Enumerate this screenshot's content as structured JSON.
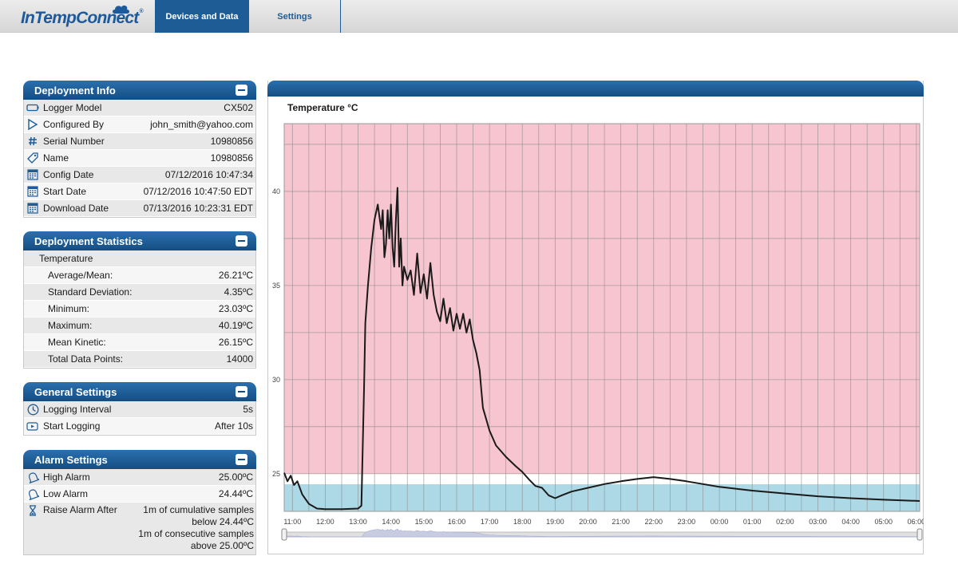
{
  "app": {
    "logo": "InTempConnect",
    "logo_mark": "®",
    "nav": [
      {
        "label": "Devices and Data"
      },
      {
        "label": "Settings"
      }
    ]
  },
  "deployment_info": {
    "title": "Deployment Info",
    "rows": [
      {
        "label": "Logger Model",
        "value": "CX502",
        "icon": "logger-icon"
      },
      {
        "label": "Configured By",
        "value": "john_smith@yahoo.com",
        "icon": "play-triangle-icon"
      },
      {
        "label": "Serial Number",
        "value": "10980856",
        "icon": "hash-icon"
      },
      {
        "label": "Name",
        "value": "10980856",
        "icon": "tag-icon"
      },
      {
        "label": "Config Date",
        "value": "07/12/2016 10:47:34",
        "icon": "calendar-icon"
      },
      {
        "label": "Start Date",
        "value": "07/12/2016 10:47:50 EDT",
        "icon": "calendar-icon"
      },
      {
        "label": "Download Date",
        "value": "07/13/2016 10:23:31 EDT",
        "icon": "calendar-icon"
      }
    ]
  },
  "deployment_statistics": {
    "title": "Deployment Statistics",
    "group_label": "Temperature",
    "rows": [
      {
        "label": "Average/Mean:",
        "value": "26.21ºC"
      },
      {
        "label": "Standard Deviation:",
        "value": "4.35ºC"
      },
      {
        "label": "Minimum:",
        "value": "23.03ºC"
      },
      {
        "label": "Maximum:",
        "value": "40.19ºC"
      },
      {
        "label": "Mean Kinetic:",
        "value": "26.15ºC"
      },
      {
        "label": "Total Data Points:",
        "value": "14000"
      }
    ]
  },
  "general_settings": {
    "title": "General Settings",
    "rows": [
      {
        "label": "Logging Interval",
        "value": "5s",
        "icon": "clock-icon"
      },
      {
        "label": "Start Logging",
        "value": "After 10s",
        "icon": "start-logging-icon"
      }
    ]
  },
  "alarm_settings": {
    "title": "Alarm Settings",
    "rows": [
      {
        "label": "High Alarm",
        "value": "25.00ºC",
        "icon": "bell-icon"
      },
      {
        "label": "Low Alarm",
        "value": "24.44ºC",
        "icon": "bell-icon"
      }
    ],
    "raise": {
      "label": "Raise Alarm After",
      "icon": "hourglass-icon",
      "lines": [
        "1m of cumulative samples",
        "below 24.44ºC",
        "1m of consecutive samples",
        "above 25.00ºC"
      ]
    }
  },
  "colors": {
    "brand": "#1e5c96",
    "high_alarm_zone": "#f7c5d0",
    "low_alarm_zone": "#add8e6",
    "line": "#1a1a1a"
  },
  "chart_data": {
    "type": "line",
    "title": "Temperature °C",
    "ylim": [
      23.0,
      43.6
    ],
    "yticks": [
      25,
      30,
      35,
      40
    ],
    "x_ticks": [
      "11:00",
      "12:00",
      "13:00",
      "14:00",
      "15:00",
      "16:00",
      "17:00",
      "18:00",
      "19:00",
      "20:00",
      "21:00",
      "22:00",
      "23:00",
      "00:00",
      "01:00",
      "02:00",
      "03:00",
      "04:00",
      "05:00",
      "06:00"
    ],
    "x_range_hours": [
      10.75,
      30.1
    ],
    "grid": true,
    "high_alarm": 25.0,
    "low_alarm": 24.44,
    "series": [
      {
        "x": [
          10.75,
          10.85,
          10.95,
          11.05,
          11.15,
          11.3,
          11.5,
          11.75,
          12.0,
          12.5,
          13.0,
          13.1,
          13.18,
          13.22,
          13.3,
          13.4,
          13.5,
          13.6,
          13.7,
          13.75,
          13.8,
          13.85,
          13.9,
          13.95,
          14.0,
          14.05,
          14.1,
          14.15,
          14.2,
          14.25,
          14.3,
          14.35,
          14.4,
          14.5,
          14.6,
          14.7,
          14.8,
          14.9,
          15.0,
          15.1,
          15.2,
          15.3,
          15.4,
          15.5,
          15.6,
          15.7,
          15.8,
          15.9,
          16.0,
          16.1,
          16.2,
          16.3,
          16.4,
          16.5,
          16.6,
          16.7,
          16.75,
          16.8,
          17.0,
          17.2,
          17.5,
          17.8,
          18.0,
          18.2,
          18.4,
          18.6,
          18.8,
          19.0,
          19.2,
          19.5,
          20.0,
          20.5,
          21.0,
          21.5,
          22.0,
          22.5,
          23.0,
          23.5,
          24.0,
          25.0,
          26.0,
          27.0,
          28.0,
          29.0,
          30.1
        ],
        "y": [
          25.05,
          24.6,
          24.9,
          24.4,
          24.6,
          23.9,
          23.4,
          23.15,
          23.12,
          23.12,
          23.15,
          23.3,
          29.5,
          33.0,
          35.0,
          37.0,
          38.5,
          39.3,
          38.0,
          39.0,
          36.5,
          37.2,
          39.0,
          37.5,
          39.3,
          37.0,
          36.0,
          38.5,
          40.19,
          36.0,
          37.5,
          35.0,
          36.0,
          35.3,
          35.8,
          34.5,
          36.7,
          34.6,
          35.6,
          34.3,
          36.2,
          34.5,
          33.6,
          33.1,
          34.3,
          33.0,
          33.8,
          32.6,
          33.5,
          32.7,
          33.5,
          32.5,
          33.2,
          32.1,
          31.4,
          30.5,
          29.5,
          28.5,
          27.3,
          26.5,
          25.9,
          25.4,
          25.1,
          24.7,
          24.35,
          24.25,
          23.85,
          23.7,
          23.85,
          24.05,
          24.25,
          24.45,
          24.6,
          24.72,
          24.82,
          24.72,
          24.6,
          24.45,
          24.3,
          24.1,
          23.95,
          23.8,
          23.7,
          23.62,
          23.55
        ]
      }
    ]
  }
}
